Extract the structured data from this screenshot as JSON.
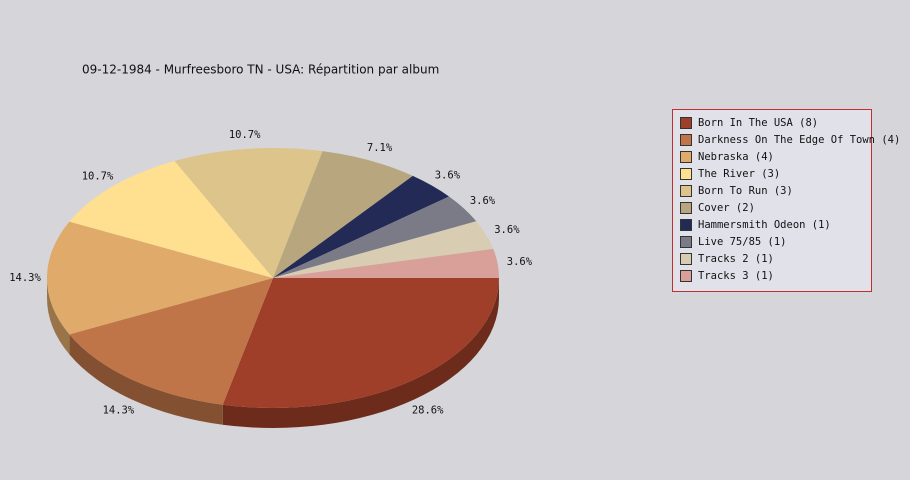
{
  "chart_data": {
    "type": "pie",
    "title": "09-12-1984 - Murfreesboro TN - USA:  Répartition par album",
    "categories": [
      "Born In The USA (8)",
      "Darkness On The Edge Of Town (4)",
      "Nebraska (4)",
      "The River (3)",
      "Born To Run (3)",
      "Cover (2)",
      "Hammersmith Odeon  (1)",
      "Live 75/85 (1)",
      "Tracks 2 (1)",
      "Tracks 3 (1)"
    ],
    "values": [
      28.6,
      14.3,
      14.3,
      10.7,
      10.7,
      7.1,
      3.6,
      3.6,
      3.6,
      3.6
    ],
    "value_labels": [
      "28.6%",
      "14.3%",
      "14.3%",
      "10.7%",
      "10.7%",
      "7.1%",
      "3.6%",
      "3.6%",
      "3.6%",
      "3.6%"
    ],
    "colors": [
      "#a03f29",
      "#c07549",
      "#e0aa6a",
      "#ffdf90",
      "#dcc48a",
      "#b8a67e",
      "#222a55",
      "#7b7b88",
      "#d8ccb2",
      "#d9a09a"
    ],
    "legend": "right"
  }
}
